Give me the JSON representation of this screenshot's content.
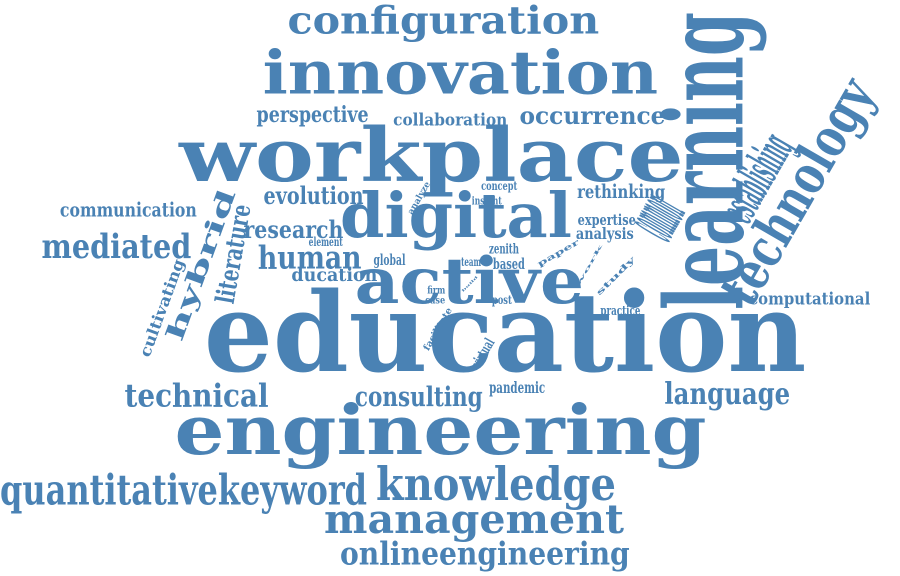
{
  "color": "#4a82b4",
  "background": "#ffffff",
  "words": [
    "configuration",
    "innovation",
    "perspective",
    "collaboration",
    "occurrence",
    "workplace",
    "learning",
    "technology",
    "establishing",
    "evolution",
    "digital",
    "rethinking",
    "common",
    "concept",
    "insight",
    "analyze",
    "communication",
    "research",
    "expertise",
    "analysis",
    "element",
    "mediated",
    "hybrid",
    "literature",
    "human",
    "team",
    "global",
    "zenith",
    "based",
    "paper",
    "work",
    "study",
    "ducation",
    "active",
    "cultivating",
    "firm",
    "case",
    "build",
    "post",
    "practice",
    "computational",
    "education",
    "facilitate",
    "virtual",
    "technical",
    "consulting",
    "pandemic",
    "language",
    "engineering",
    "knowledge",
    "quantitativekeyword",
    "management",
    "onlineengineering"
  ]
}
